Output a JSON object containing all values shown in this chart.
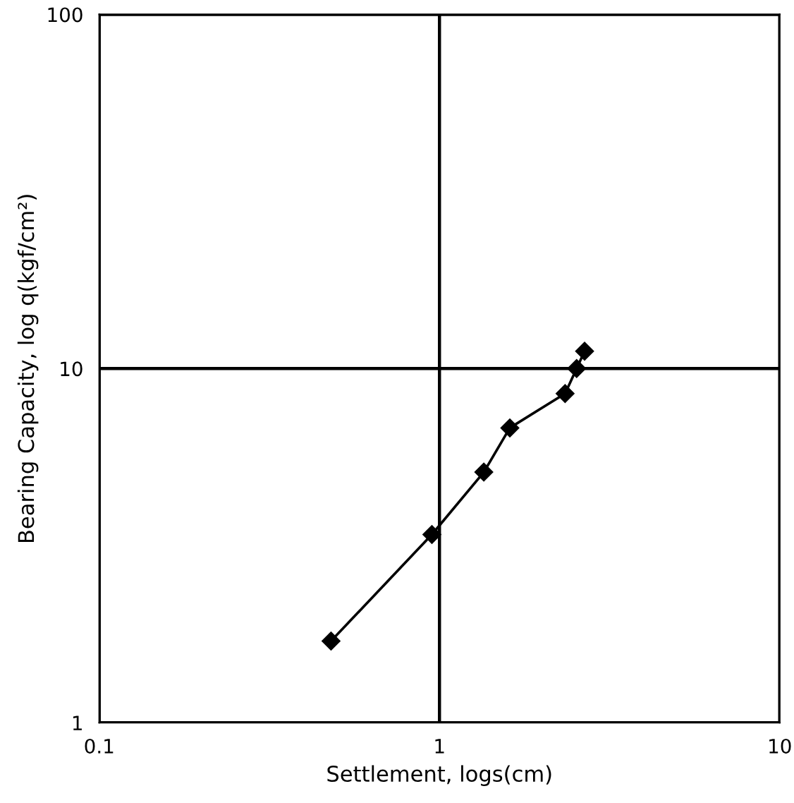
{
  "chart_data": {
    "type": "line",
    "xlabel": "Settlement, logs(cm)",
    "ylabel": "Bearing Capacity, log q(kgf/cm²)",
    "log": "xy",
    "xlim": [
      0.1,
      10
    ],
    "ylim": [
      1,
      100
    ],
    "xticks": [
      0.1,
      1,
      10
    ],
    "yticks": [
      1,
      10,
      100
    ],
    "grid": true,
    "marker": "diamond",
    "line_style": "solid",
    "series": [
      {
        "color": "#000000",
        "x": [
          0.48,
          0.95,
          1.35,
          1.61,
          2.34,
          2.53,
          2.67
        ],
        "values": [
          1.7,
          3.4,
          5.1,
          6.8,
          8.5,
          10,
          11.2
        ]
      }
    ]
  }
}
